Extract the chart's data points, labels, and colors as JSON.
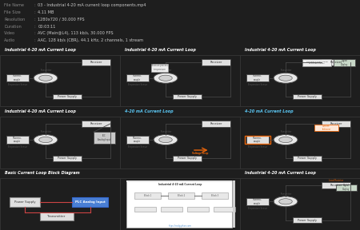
{
  "bg_dark": "#1e1e1e",
  "text_color_meta": "#b0b0b0",
  "title_bg": "#222222",
  "title_bg_alt": "#1a1a1a",
  "meta_lines": [
    [
      "File Name",
      "03 - Industrial 4-20 mA current loop components.mp4"
    ],
    [
      "File Size",
      "4.11 MB"
    ],
    [
      "Resolution",
      "1280x720 / 30.000 FPS"
    ],
    [
      "Duration",
      "00:03:11"
    ],
    [
      "Video",
      "AVC (Main@L4), 113 kb/s, 30.000 FPS"
    ],
    [
      "Audio",
      "AAC, 128 kb/s (CBR), 44.1 kHz, 2 channels, 1 stream"
    ]
  ],
  "grid_titles": [
    "Industrial 4-20 mA Current Loop",
    "Industrial 4-20 mA Current Loop",
    "Industrial 4-20 mA Current Loop",
    "Industrial 4-20 mA Current Loop",
    "4-20 mA Current Loop",
    "4-20 mA Current Loop",
    "Basic Current Loop Block Diagram",
    null,
    "Industrial 4-20 mA Current Loop"
  ],
  "grid_title_colors": [
    "#ffffff",
    "#ffffff",
    "#ffffff",
    "#ffffff",
    "#5bc8f5",
    "#5bc8f5",
    "#ffffff",
    "#ffffff",
    "#ffffff"
  ],
  "cell_types": [
    "circuit",
    "circuit_labeled",
    "circuit_digital",
    "circuit_plc",
    "circuit_voltage",
    "circuit_current",
    "block_diagram",
    "screenshot",
    "circuit_full"
  ],
  "circuit_bg": "#f5f5f5",
  "circuit_white": "#ffffff",
  "line_color": "#555555",
  "box_fill": "#e0e0e0",
  "orange_color": "#e8640a",
  "blue_color": "#4a90d9",
  "red_color": "#cc3333",
  "meta_label_color": "#888888",
  "meta_value_color": "#cccccc"
}
